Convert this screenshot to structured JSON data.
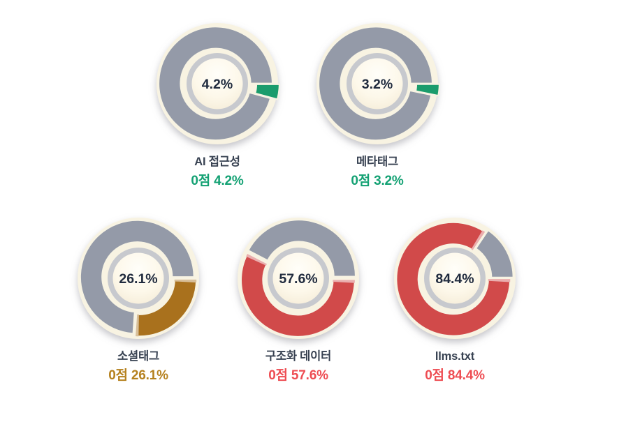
{
  "theme": {
    "background": "#ffffff",
    "donut_rim": "#f8f3e2",
    "inner_ring": "#c7c9ce",
    "center_text_color": "#202b3e",
    "title_color": "#374151"
  },
  "chart_data": [
    {
      "type": "pie",
      "title": "AI 접근성",
      "center_label": "4.2%",
      "score_label": "0점 4.2%",
      "value_pct": 4.2,
      "remainder_pct": 95.8,
      "slice_color": "#1b9c6c",
      "remainder_color": "#949aa8",
      "label_color": "#13a173"
    },
    {
      "type": "pie",
      "title": "메타태그",
      "center_label": "3.2%",
      "score_label": "0점 3.2%",
      "value_pct": 3.2,
      "remainder_pct": 96.8,
      "slice_color": "#1b9c6c",
      "remainder_color": "#949aa8",
      "label_color": "#13a173"
    },
    {
      "type": "pie",
      "title": "소셜태그",
      "center_label": "26.1%",
      "score_label": "0점 26.1%",
      "value_pct": 26.1,
      "remainder_pct": 73.9,
      "slice_color": "#a9711d",
      "remainder_color": "#949aa8",
      "label_color": "#b5811e"
    },
    {
      "type": "pie",
      "title": "구조화 데이터",
      "center_label": "57.6%",
      "score_label": "0점 57.6%",
      "value_pct": 57.6,
      "remainder_pct": 42.4,
      "slice_color": "#d14a4a",
      "remainder_color": "#949aa8",
      "label_color": "#ee4c52"
    },
    {
      "type": "pie",
      "title": "llms.txt",
      "center_label": "84.4%",
      "score_label": "0점 84.4%",
      "value_pct": 84.4,
      "remainder_pct": 15.6,
      "slice_color": "#d14a4a",
      "remainder_color": "#949aa8",
      "label_color": "#ee4c52"
    }
  ]
}
